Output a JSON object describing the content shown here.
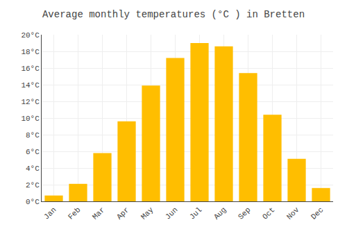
{
  "chart_data": {
    "type": "bar",
    "title": "Average monthly temperatures (°C ) in Bretten",
    "categories": [
      "Jan",
      "Feb",
      "Mar",
      "Apr",
      "May",
      "Jun",
      "Jul",
      "Aug",
      "Sep",
      "Oct",
      "Nov",
      "Dec"
    ],
    "values": [
      0.7,
      2.1,
      5.8,
      9.6,
      13.9,
      17.2,
      19.0,
      18.6,
      15.4,
      10.4,
      5.1,
      1.6
    ],
    "color": "#FFBE00",
    "ylim": [
      0,
      20
    ],
    "yticks": [
      {
        "value": 0,
        "label": "0°C"
      },
      {
        "value": 2,
        "label": "2°C"
      },
      {
        "value": 4,
        "label": "4°C"
      },
      {
        "value": 6,
        "label": "6°C"
      },
      {
        "value": 8,
        "label": "8°C"
      },
      {
        "value": 10,
        "label": "10°C"
      },
      {
        "value": 12,
        "label": "12°C"
      },
      {
        "value": 14,
        "label": "14°C"
      },
      {
        "value": 16,
        "label": "16°C"
      },
      {
        "value": 18,
        "label": "18°C"
      },
      {
        "value": 20,
        "label": "20°C"
      }
    ],
    "grid": true
  }
}
